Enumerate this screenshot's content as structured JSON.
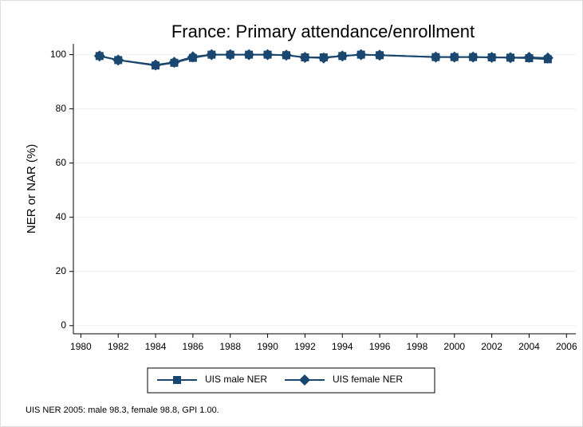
{
  "chart_data": {
    "type": "line",
    "title": "France: Primary attendance/enrollment",
    "y_label": "NER or NAR (%)",
    "note": "UIS NER 2005: male 98.3, female 98.8, GPI 1.00.",
    "x": [
      1981,
      1982,
      1984,
      1985,
      1986,
      1987,
      1988,
      1989,
      1990,
      1991,
      1992,
      1993,
      1994,
      1995,
      1996,
      1999,
      2000,
      2001,
      2002,
      2003,
      2004,
      2005
    ],
    "series": [
      {
        "name": "UIS male NER",
        "color": "#1a476f",
        "marker": "square",
        "values": [
          99.5,
          98,
          96,
          97,
          98.8,
          100,
          100,
          100,
          100,
          99.8,
          99,
          99,
          99.5,
          100,
          99.8,
          99.1,
          99.1,
          99.1,
          99,
          98.9,
          98.7,
          98.3
        ]
      },
      {
        "name": "UIS female NER",
        "color": "#1a476f",
        "marker": "diamond",
        "values": [
          99.5,
          98,
          96.2,
          97.2,
          99.2,
          100,
          100,
          100,
          100,
          99.8,
          99,
          98.8,
          99.5,
          100,
          99.8,
          99.1,
          99.1,
          99.1,
          99,
          98.9,
          99,
          98.8
        ]
      }
    ],
    "xlim": [
      1979.6,
      2006.5
    ],
    "xticks": [
      1980,
      1982,
      1984,
      1986,
      1988,
      1990,
      1992,
      1994,
      1996,
      1998,
      2000,
      2002,
      2004,
      2006
    ],
    "ylim": [
      -3,
      104
    ],
    "yticks": [
      0,
      20,
      40,
      60,
      80,
      100
    ],
    "grid": true,
    "legend": "bottom"
  }
}
